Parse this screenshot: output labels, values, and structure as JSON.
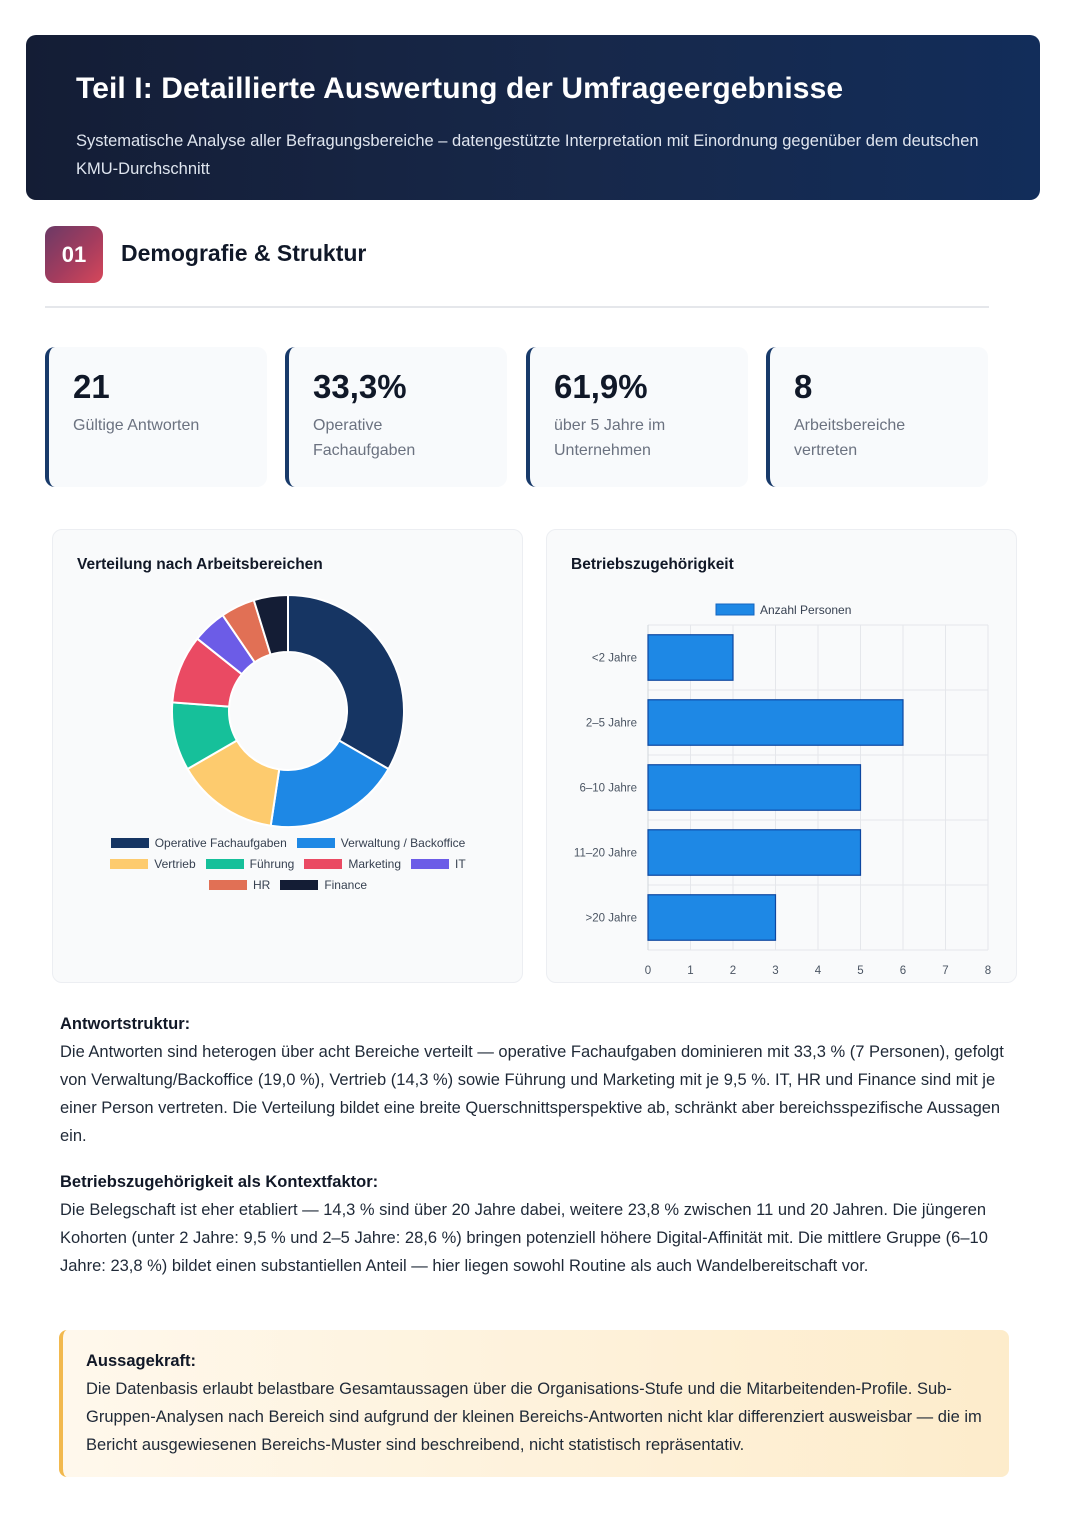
{
  "header": {
    "title": "Teil I: Detaillierte Auswertung der Umfrageergebnisse",
    "subtitle": "Systematische Analyse aller Befragungsbereiche – datengestützte Interpretation mit Einordnung gegenüber dem deutschen KMU-Durchschnitt"
  },
  "section": {
    "number": "01",
    "title": "Demografie & Struktur"
  },
  "kpis": [
    {
      "value": "21",
      "label": "Gültige Antworten"
    },
    {
      "value": "33,3%",
      "label": "Operative Fachaufgaben"
    },
    {
      "value": "61,9%",
      "label": "über 5 Jahre im Unternehmen"
    },
    {
      "value": "8",
      "label": "Arbeitsbereiche vertreten"
    }
  ],
  "chart_data": [
    {
      "type": "pie",
      "title": "Verteilung nach Arbeitsbereichen",
      "categories": [
        "Operative Fachaufgaben",
        "Verwaltung / Backoffice",
        "Vertrieb",
        "Führung",
        "Marketing",
        "IT",
        "HR",
        "Finance"
      ],
      "values": [
        7,
        4,
        3,
        2,
        2,
        1,
        1,
        1
      ],
      "colors": [
        "#163563",
        "#1e88e5",
        "#fdcb6e",
        "#16c09a",
        "#ea4a63",
        "#6c5ce7",
        "#e17055",
        "#141d35"
      ],
      "legend": "bottom"
    },
    {
      "type": "bar",
      "orientation": "horizontal",
      "title": "Betriebszugehörigkeit",
      "categories": [
        "<2 Jahre",
        "2–5 Jahre",
        "6–10 Jahre",
        "11–20 Jahre",
        ">20 Jahre"
      ],
      "series": [
        {
          "name": "Anzahl Personen",
          "values": [
            2,
            6,
            5,
            5,
            3
          ],
          "color": "#1e88e5"
        }
      ],
      "xlim": [
        0,
        8
      ],
      "ticks": [
        "0",
        "1",
        "2",
        "3",
        "4",
        "5",
        "6",
        "7",
        "8"
      ],
      "grid": true,
      "legend": "top"
    }
  ],
  "text_blocks": [
    {
      "heading": "Antwortstruktur:",
      "body": "Die Antworten sind heterogen über acht Bereiche verteilt — operative Fachaufgaben dominieren mit 33,3 % (7 Personen), gefolgt von Verwaltung/Backoffice (19,0 %), Vertrieb (14,3 %) sowie Führung und Marketing mit je 9,5 %. IT, HR und Finance sind mit je einer Person vertreten. Die Verteilung bildet eine breite Querschnittsperspektive ab, schränkt aber bereichsspezifische Aussagen ein."
    },
    {
      "heading": "Betriebszugehörigkeit als Kontextfaktor:",
      "body": "Die Belegschaft ist eher etabliert — 14,3 % sind über 20 Jahre dabei, weitere 23,8 % zwischen 11 und 20 Jahren. Die jüngeren Kohorten (unter 2 Jahre: 9,5 % und 2–5 Jahre: 28,6 %) bringen potenziell höhere Digital-Affinität mit. Die mittlere Gruppe (6–10 Jahre: 23,8 %) bildet einen substantiellen Anteil — hier liegen sowohl Routine als auch Wandelbereitschaft vor."
    }
  ],
  "callout": {
    "heading": "Aussagekraft:",
    "body": "Die Datenbasis erlaubt belastbare Gesamtaussagen über die Organisations-Stufe und die Mitarbeitenden-Profile. Sub-Gruppen-Analysen nach Bereich sind aufgrund der kleinen Bereichs-Antworten nicht klar differenziert ausweisbar — die im Bericht ausgewiesenen Bereichs-Muster sind beschreibend, nicht statistisch repräsentativ."
  }
}
